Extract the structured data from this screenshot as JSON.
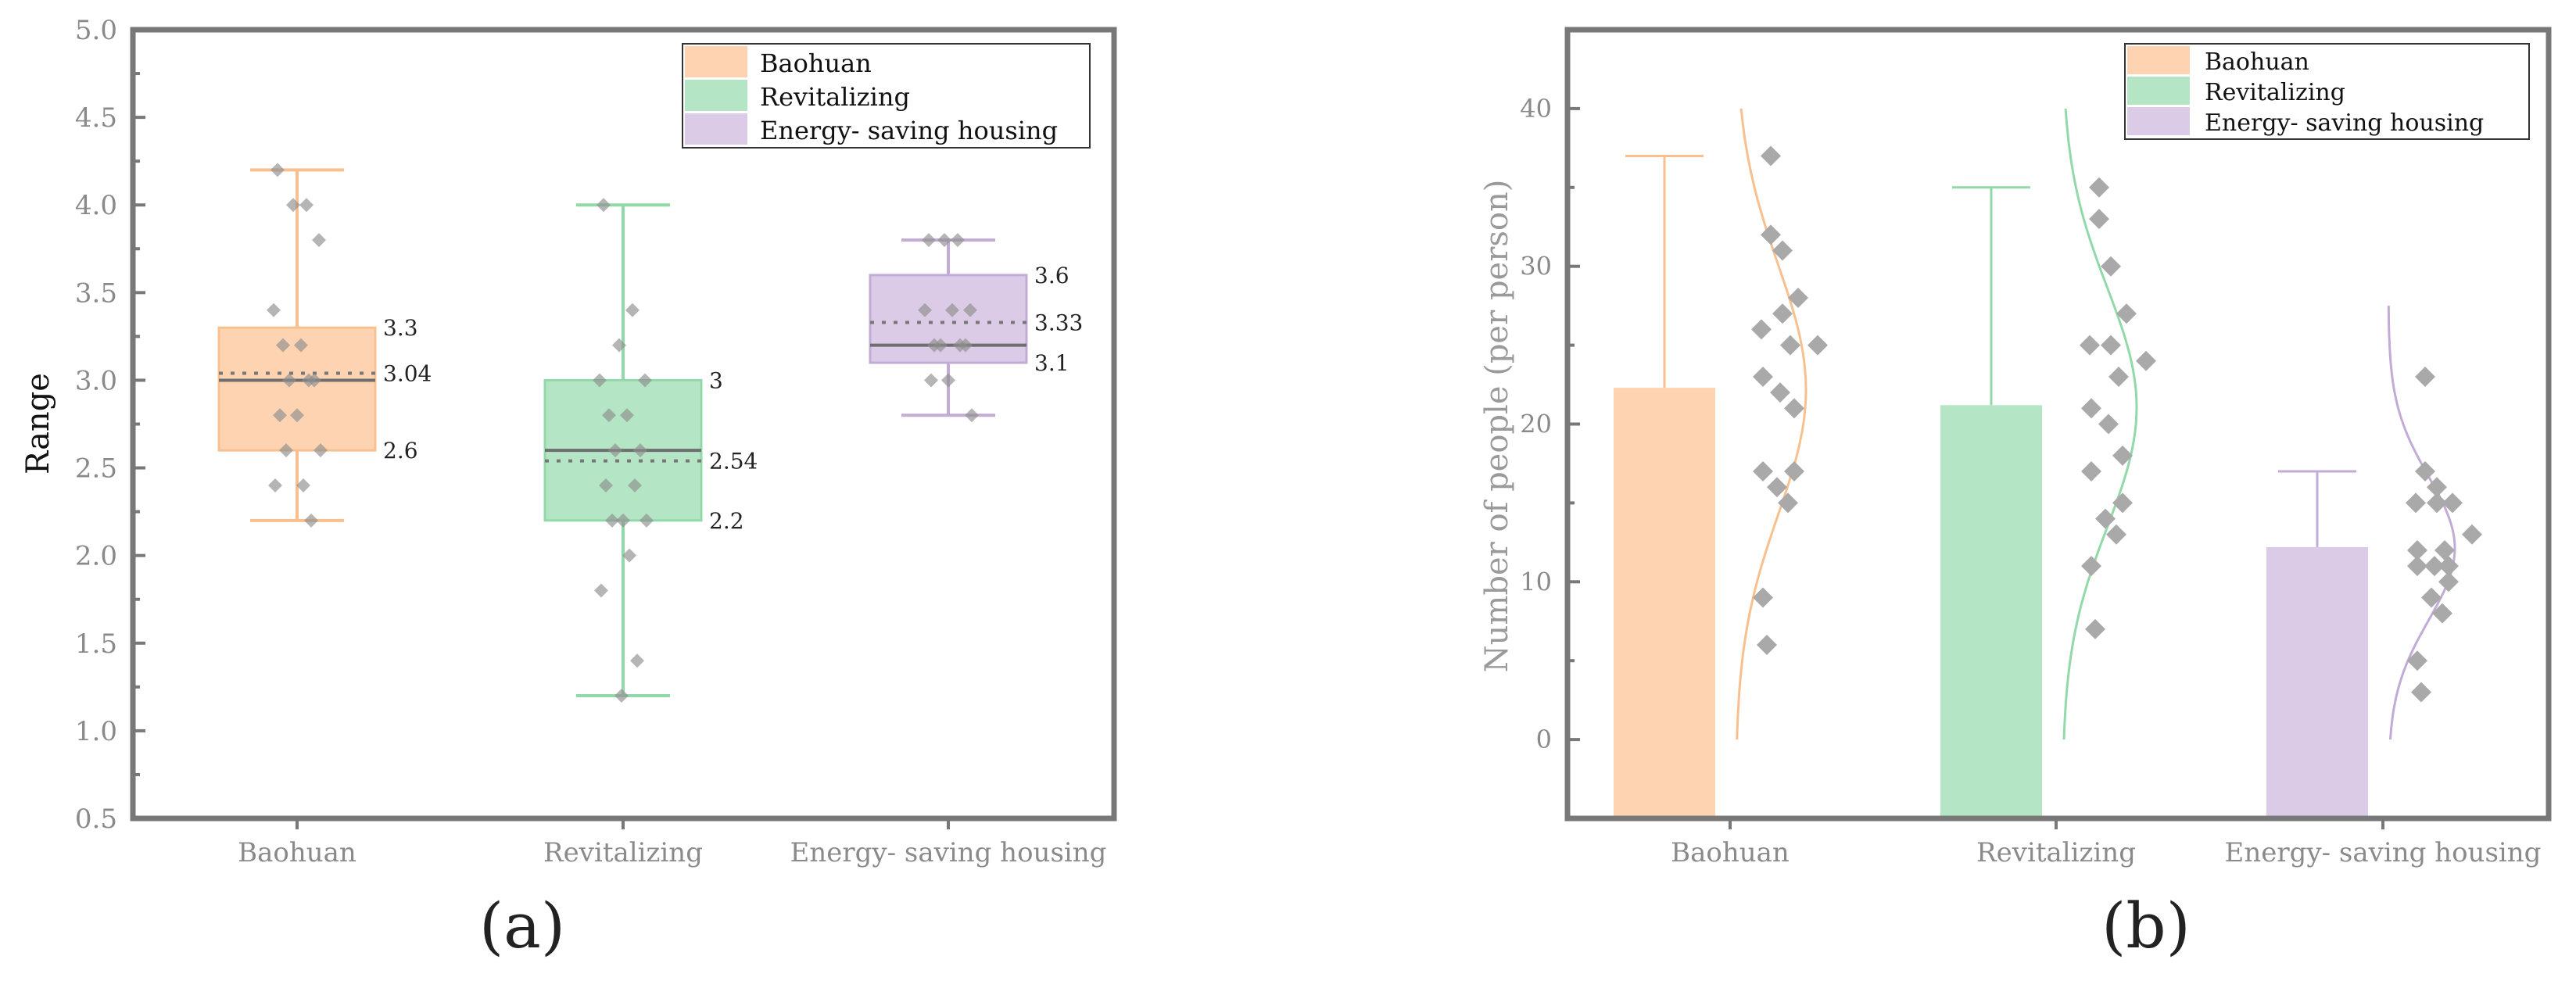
{
  "chart_data": [
    {
      "type": "box",
      "panel_label": "(a)",
      "ylabel": "Range",
      "ylim": [
        0.5,
        5.0
      ],
      "yticks": [
        "0.5",
        "1.0",
        "1.5",
        "2.0",
        "2.5",
        "3.0",
        "3.5",
        "4.0",
        "4.5",
        "5.0"
      ],
      "categories": [
        "Baohuan",
        "Revitalizing",
        "Energy- saving housing"
      ],
      "legend": [
        "Baohuan",
        "Revitalizing",
        "Energy- saving housing"
      ],
      "series_colors": [
        "#fdd3b1",
        "#b4e6c5",
        "#dccbe6"
      ],
      "stroke_colors": [
        "#f8c08f",
        "#92d9a9",
        "#c2abd6"
      ],
      "boxes": [
        {
          "min": 2.2,
          "q1": 2.6,
          "median": 3.0,
          "mean": 3.04,
          "q3": 3.3,
          "max": 4.2,
          "labels": {
            "q3": "3.3",
            "mean": "3.04",
            "q1": "2.6"
          },
          "points": [
            4.2,
            4.0,
            4.0,
            3.8,
            3.4,
            3.2,
            3.2,
            3.0,
            3.0,
            3.0,
            2.8,
            2.8,
            2.6,
            2.6,
            2.4,
            2.4,
            2.2
          ]
        },
        {
          "min": 1.2,
          "q1": 2.2,
          "median": 2.6,
          "mean": 2.54,
          "q3": 3.0,
          "max": 4.0,
          "labels": {
            "q3": "3",
            "mean": "2.54",
            "q1": "2.2"
          },
          "points": [
            4.0,
            3.4,
            3.2,
            3.0,
            3.0,
            2.8,
            2.8,
            2.6,
            2.6,
            2.4,
            2.4,
            2.2,
            2.2,
            2.2,
            2.0,
            1.8,
            1.4,
            1.2
          ]
        },
        {
          "min": 2.8,
          "q1": 3.1,
          "median": 3.2,
          "mean": 3.33,
          "q3": 3.6,
          "max": 3.8,
          "labels": {
            "q3": "3.6",
            "mean": "3.33",
            "q1": "3.1"
          },
          "points": [
            3.8,
            3.8,
            3.8,
            3.4,
            3.4,
            3.4,
            3.2,
            3.2,
            3.2,
            3.2,
            3.0,
            3.0,
            2.8
          ]
        }
      ]
    },
    {
      "type": "bar",
      "panel_label": "(b)",
      "ylabel": "Number of people (per person)",
      "ylim": [
        -5,
        45
      ],
      "yticks": [
        "0",
        "10",
        "20",
        "30",
        "40"
      ],
      "categories": [
        "Baohuan",
        "Revitalizing",
        "Energy- saving housing"
      ],
      "legend": [
        "Baohuan",
        "Revitalizing",
        "Energy- saving housing"
      ],
      "series_colors": [
        "#fdd3b1",
        "#b4e6c5",
        "#dccbe6"
      ],
      "stroke_colors": [
        "#f8c08f",
        "#92d9a9",
        "#c2abd6"
      ],
      "values": [
        22.3,
        21.2,
        12.2
      ],
      "error_top": [
        37,
        35,
        17
      ],
      "points": [
        [
          37,
          32,
          31,
          28,
          27,
          26,
          25,
          25,
          23,
          22,
          21,
          17,
          17,
          16,
          15,
          9,
          6
        ],
        [
          35,
          33,
          30,
          27,
          25,
          25,
          24,
          23,
          21,
          20,
          18,
          17,
          15,
          14,
          13,
          11,
          7
        ],
        [
          23,
          17,
          16,
          15,
          15,
          15,
          13,
          12,
          12,
          11,
          11,
          11,
          10,
          9,
          8,
          5,
          3
        ]
      ],
      "curve_range": [
        [
          0,
          40
        ],
        [
          0,
          40
        ],
        [
          0,
          27.5
        ]
      ]
    }
  ]
}
